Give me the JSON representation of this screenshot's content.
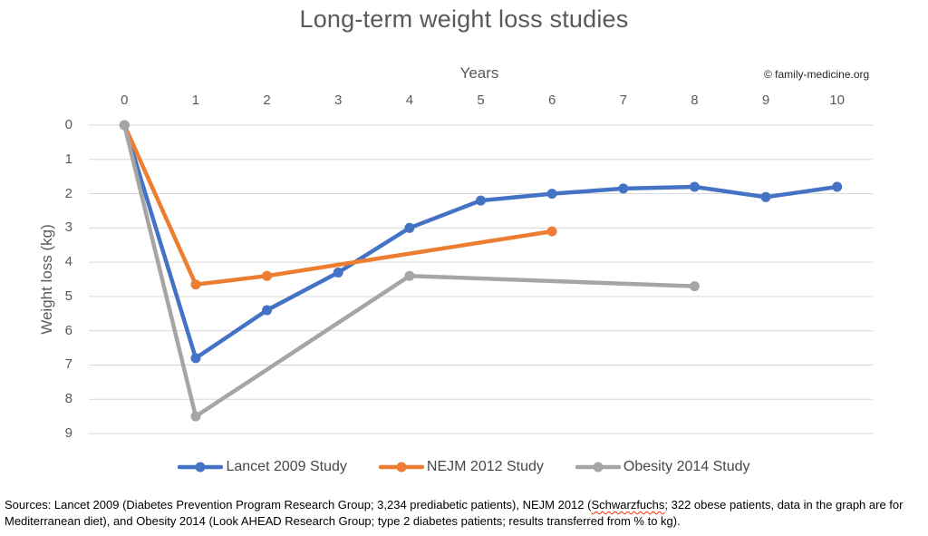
{
  "title": "Long-term weight loss studies",
  "copyright": "© family-medicine.org",
  "chart_data": {
    "type": "line",
    "title": "Long-term weight loss studies",
    "xlabel": "Years",
    "ylabel": "Weight loss (kg)",
    "x_ticks": [
      0,
      1,
      2,
      3,
      4,
      5,
      6,
      7,
      8,
      9,
      10
    ],
    "y_ticks": [
      0,
      1,
      2,
      3,
      4,
      5,
      6,
      7,
      8,
      9
    ],
    "y_axis_inverted": true,
    "xlim": [
      0,
      10
    ],
    "ylim": [
      0,
      9
    ],
    "grid": "horizontal",
    "legend_position": "bottom",
    "gridline_color": "#D9D9D9",
    "series": [
      {
        "name": "Lancet 2009 Study",
        "color": "#4472C4",
        "points": [
          [
            0,
            0
          ],
          [
            1,
            6.8
          ],
          [
            2,
            5.4
          ],
          [
            3,
            4.3
          ],
          [
            4,
            3.0
          ],
          [
            5,
            2.2
          ],
          [
            6,
            2.0
          ],
          [
            7,
            1.85
          ],
          [
            8,
            1.8
          ],
          [
            9,
            2.1
          ],
          [
            10,
            1.8
          ]
        ]
      },
      {
        "name": "NEJM 2012 Study",
        "color": "#ED7D31",
        "points": [
          [
            0,
            0
          ],
          [
            1,
            4.65
          ],
          [
            2,
            4.4
          ],
          [
            6,
            3.1
          ]
        ]
      },
      {
        "name": "Obesity 2014 Study",
        "color": "#A5A5A5",
        "points": [
          [
            0,
            0
          ],
          [
            1,
            8.5
          ],
          [
            4,
            4.4
          ],
          [
            8,
            4.7
          ]
        ]
      }
    ]
  },
  "source_note": {
    "prefix": "Sources: Lancet 2009 (Diabetes Prevention Program Research Group; 3,234 prediabetic patients), NEJM 2012 (",
    "misspelled_word": "Schwarzfuchs",
    "suffix": "; 322 obese patients, data in the graph are for Mediterranean diet), and Obesity 2014 (Look AHEAD Research Group; type 2 diabetes patients; results transferred from % to kg)."
  }
}
